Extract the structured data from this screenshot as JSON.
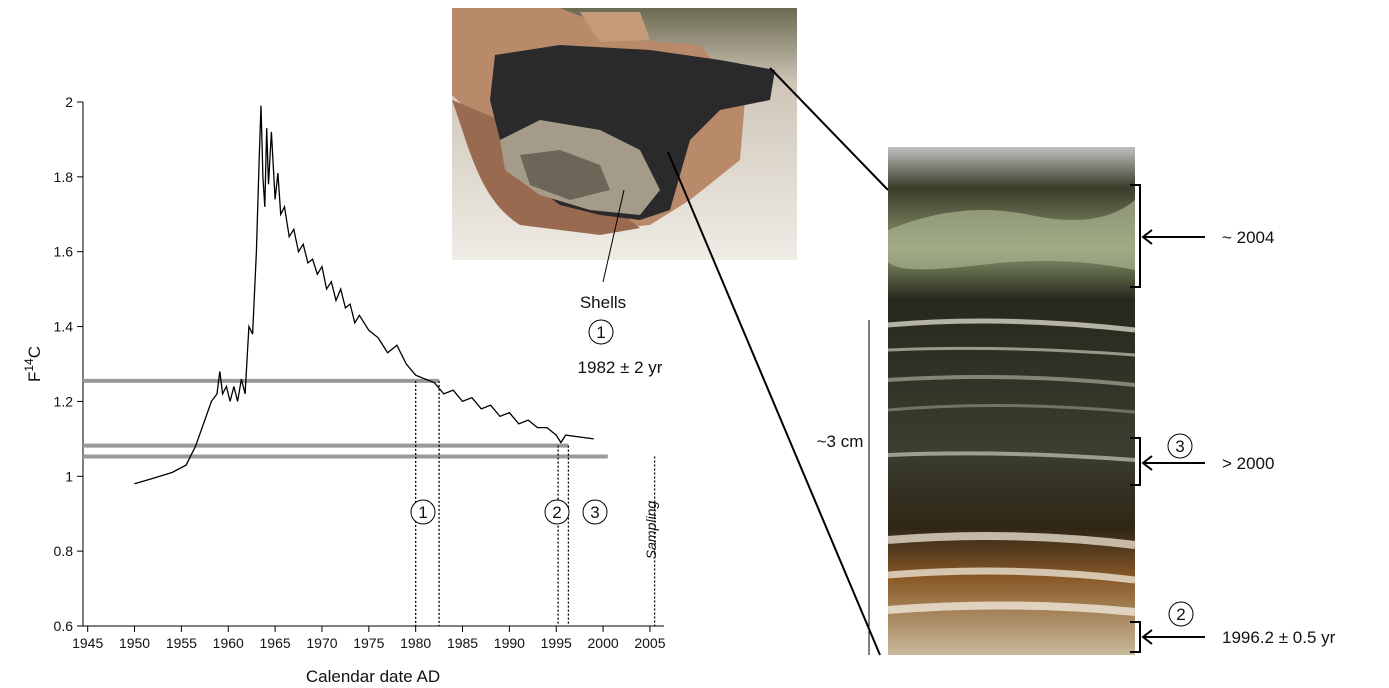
{
  "chart_data": {
    "type": "line",
    "x_label": "Calendar date AD",
    "y_label": [
      "F",
      "14",
      "C"
    ],
    "x": [
      1950,
      1952,
      1954,
      1955.5,
      1956.5,
      1957.5,
      1958.2,
      1958.8,
      1959.1,
      1959.4,
      1959.8,
      1960.2,
      1960.6,
      1961,
      1961.4,
      1961.8,
      1962.2,
      1962.6,
      1963,
      1963.3,
      1963.5,
      1963.7,
      1963.9,
      1964.1,
      1964.3,
      1964.6,
      1965,
      1965.3,
      1965.6,
      1966,
      1966.5,
      1967,
      1967.5,
      1968,
      1968.5,
      1969,
      1969.5,
      1970,
      1970.5,
      1971,
      1971.5,
      1972,
      1972.5,
      1973,
      1973.5,
      1974,
      1975,
      1976,
      1977,
      1978,
      1979,
      1980,
      1981,
      1982,
      1983,
      1984,
      1985,
      1986,
      1987,
      1988,
      1989,
      1990,
      1991,
      1992,
      1993,
      1994,
      1995,
      1995.5,
      1996,
      1999
    ],
    "values": [
      0.98,
      0.995,
      1.01,
      1.03,
      1.08,
      1.15,
      1.2,
      1.22,
      1.28,
      1.22,
      1.24,
      1.2,
      1.24,
      1.2,
      1.26,
      1.22,
      1.4,
      1.38,
      1.6,
      1.85,
      1.99,
      1.8,
      1.72,
      1.93,
      1.78,
      1.92,
      1.74,
      1.81,
      1.7,
      1.72,
      1.64,
      1.66,
      1.6,
      1.62,
      1.57,
      1.58,
      1.54,
      1.56,
      1.5,
      1.52,
      1.47,
      1.5,
      1.45,
      1.46,
      1.41,
      1.43,
      1.39,
      1.37,
      1.33,
      1.35,
      1.3,
      1.27,
      1.26,
      1.25,
      1.22,
      1.23,
      1.2,
      1.21,
      1.18,
      1.19,
      1.16,
      1.17,
      1.14,
      1.15,
      1.13,
      1.13,
      1.11,
      1.09,
      1.11,
      1.1
    ],
    "color": "#000000",
    "xlim": [
      1944.5,
      2006.5
    ],
    "ylim": [
      0.6,
      2
    ],
    "xticks": [
      1945,
      1950,
      1955,
      1960,
      1965,
      1970,
      1975,
      1980,
      1985,
      1990,
      1995,
      2000,
      2005
    ],
    "yticks": [
      0.6,
      0.8,
      1,
      1.2,
      1.4,
      1.6,
      1.8,
      2
    ],
    "reference_lines": [
      {
        "y": 1.255,
        "x_end": 1982.5
      },
      {
        "y": 1.082,
        "x_end": 1996.3
      },
      {
        "y": 1.053,
        "x_end": 2000.5
      }
    ],
    "reference_color": "#999999",
    "date_lines": [
      {
        "x": 1980,
        "y_top": 1.255
      },
      {
        "x": 1982.5,
        "y_top": 1.255
      },
      {
        "x": 1995.2,
        "y_top": 1.082
      },
      {
        "x": 1996.3,
        "y_top": 1.082
      },
      {
        "x": 2005.5,
        "y_top": 1.053
      }
    ],
    "annotations": [
      "1",
      "2",
      "3",
      "Sampling"
    ]
  },
  "photo": {
    "label": "Shells",
    "number": "1",
    "date": "1982 ± 2 yr"
  },
  "core": {
    "scale_label": "~3 cm",
    "layers": [
      {
        "date": "~ 2004"
      },
      {
        "number": "3",
        "date": "> 2000"
      },
      {
        "number": "2",
        "date": "1996.2 ± 0.5 yr"
      }
    ]
  }
}
